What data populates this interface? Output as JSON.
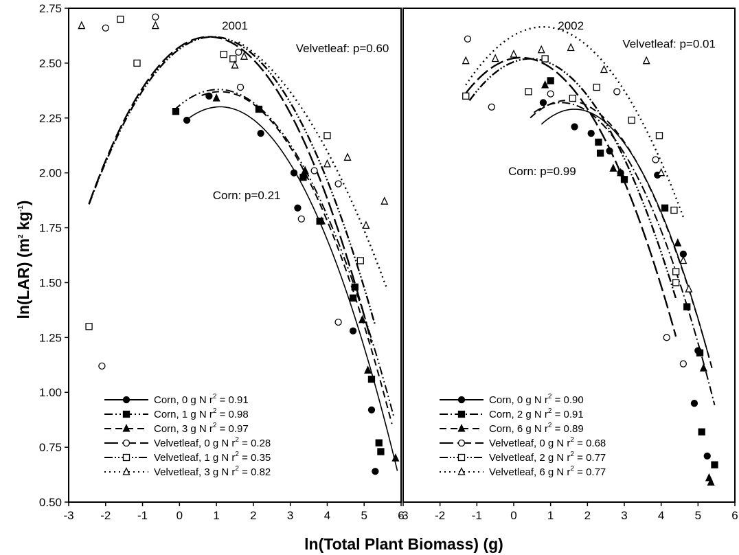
{
  "y_axis": {
    "label_main": "ln(LAR) (m",
    "label_sup1": "2",
    "label_mid": " kg",
    "label_sup2": "-1",
    "label_end": ")"
  },
  "x_axis": {
    "label": "ln(Total Plant Biomass) (g)"
  },
  "chart_data": [
    {
      "type": "scatter",
      "title": "2001",
      "xlim": [
        -3,
        6
      ],
      "ylim": [
        0.5,
        2.75
      ],
      "x_ticks": [
        "-3",
        "-2",
        "-1",
        "0",
        "1",
        "2",
        "3",
        "4",
        "5",
        "6"
      ],
      "y_ticks": [
        "0.50",
        "0.75",
        "1.00",
        "1.25",
        "1.50",
        "1.75",
        "2.00",
        "2.25",
        "2.50",
        "2.75"
      ],
      "annotations": [
        {
          "text": "Velvetleaf: p=0.60",
          "x": 3.15,
          "y": 2.55
        },
        {
          "text": "Corn: p=0.21",
          "x": 0.9,
          "y": 1.88
        }
      ],
      "series": [
        {
          "name": "Corn, 0 g N",
          "r2_label": "r",
          "r2_sup": "2",
          "r2_value": " = 0.91",
          "marker": "circle-filled",
          "dash": "none",
          "points": [
            [
              0.2,
              2.24
            ],
            [
              0.8,
              2.35
            ],
            [
              2.2,
              2.18
            ],
            [
              3.2,
              1.84
            ],
            [
              3.1,
              2.0
            ],
            [
              4.7,
              1.28
            ],
            [
              5.2,
              0.92
            ],
            [
              5.3,
              0.64
            ]
          ],
          "fit": [
            [
              1.1,
              0.1,
              -0.1
            ]
          ]
        },
        {
          "name": "Corn, 1 g N",
          "r2_label": "r",
          "r2_sup": "2",
          "r2_value": " = 0.98",
          "marker": "square-filled",
          "dash": "12 4 2 4 2 4",
          "points": [
            [
              -0.1,
              2.28
            ],
            [
              2.15,
              2.29
            ],
            [
              3.35,
              1.98
            ],
            [
              3.8,
              1.78
            ],
            [
              4.75,
              1.48
            ],
            [
              4.7,
              1.43
            ],
            [
              5.2,
              1.06
            ],
            [
              5.4,
              0.77
            ],
            [
              5.45,
              0.73
            ]
          ],
          "fit": []
        },
        {
          "name": "Corn, 3 g N",
          "r2_label": "r",
          "r2_sup": "2",
          "r2_value": " = 0.97",
          "marker": "triangle-filled",
          "dash": "10 6",
          "points": [
            [
              1.0,
              2.34
            ],
            [
              3.4,
              2.01
            ],
            [
              3.85,
              1.78
            ],
            [
              4.95,
              1.33
            ],
            [
              5.1,
              1.1
            ],
            [
              5.85,
              0.7
            ]
          ],
          "fit": []
        },
        {
          "name": "Velvetleaf, 0 g N",
          "r2_label": "r",
          "r2_sup": "2",
          "r2_value": " = 0.28",
          "marker": "circle-open",
          "dash": "20 6",
          "points": [
            [
              -2.1,
              1.12
            ],
            [
              -2.0,
              2.66
            ],
            [
              -0.65,
              2.71
            ],
            [
              1.65,
              2.39
            ],
            [
              1.6,
              2.55
            ],
            [
              3.3,
              1.79
            ],
            [
              3.65,
              2.01
            ],
            [
              4.3,
              1.32
            ],
            [
              4.3,
              1.95
            ]
          ],
          "fit": []
        },
        {
          "name": "Velvetleaf, 1 g N",
          "r2_label": "r",
          "r2_sup": "2",
          "r2_value": " = 0.35",
          "marker": "square-open",
          "dash": "12 3 2 3 2 3",
          "points": [
            [
              -2.45,
              1.3
            ],
            [
              -1.6,
              2.7
            ],
            [
              -1.15,
              2.5
            ],
            [
              1.2,
              2.54
            ],
            [
              1.45,
              2.52
            ],
            [
              4.0,
              2.17
            ],
            [
              4.9,
              1.6
            ]
          ],
          "fit": []
        },
        {
          "name": "Velvetleaf, 3 g N",
          "r2_label": "r",
          "r2_sup": "2",
          "r2_value": " = 0.82",
          "marker": "triangle-open",
          "dash": "2 5",
          "points": [
            [
              -2.65,
              2.67
            ],
            [
              -0.65,
              2.67
            ],
            [
              1.5,
              2.49
            ],
            [
              1.75,
              2.53
            ],
            [
              4.0,
              2.04
            ],
            [
              4.55,
              2.07
            ],
            [
              5.05,
              1.76
            ],
            [
              5.55,
              1.87
            ]
          ],
          "fit": []
        }
      ]
    },
    {
      "type": "scatter",
      "title": "2002",
      "xlim": [
        -3,
        6
      ],
      "ylim": [
        0.5,
        2.75
      ],
      "x_ticks": [
        "-3",
        "-2",
        "-1",
        "0",
        "1",
        "2",
        "3",
        "4",
        "5",
        "6"
      ],
      "annotations": [
        {
          "text": "Velvetleaf: p=0.01",
          "x": 2.95,
          "y": 2.57
        },
        {
          "text": "Corn: p=0.99",
          "x": -0.15,
          "y": 1.99
        }
      ],
      "series": [
        {
          "name": "Corn, 0 g N",
          "r2_label": "r",
          "r2_sup": "2",
          "r2_value": " = 0.90",
          "marker": "circle-filled",
          "dash": "none",
          "points": [
            [
              0.8,
              2.32
            ],
            [
              1.65,
              2.21
            ],
            [
              2.1,
              2.18
            ],
            [
              2.6,
              2.1
            ],
            [
              2.9,
              2.0
            ],
            [
              3.9,
              1.99
            ],
            [
              4.6,
              1.63
            ],
            [
              4.9,
              0.95
            ],
            [
              5.0,
              1.19
            ],
            [
              5.25,
              0.71
            ]
          ],
          "fit": []
        },
        {
          "name": "Corn, 2 g N",
          "r2_label": "r",
          "r2_sup": "2",
          "r2_value": " = 0.91",
          "marker": "square-filled",
          "dash": "12 4 2 4",
          "points": [
            [
              1.0,
              2.42
            ],
            [
              2.3,
              2.14
            ],
            [
              2.35,
              2.09
            ],
            [
              3.0,
              1.97
            ],
            [
              4.1,
              1.84
            ],
            [
              4.7,
              1.39
            ],
            [
              5.05,
              1.18
            ],
            [
              5.1,
              0.82
            ],
            [
              5.45,
              0.67
            ]
          ],
          "fit": []
        },
        {
          "name": "Corn, 6 g N",
          "r2_label": "r",
          "r2_sup": "2",
          "r2_value": " = 0.89",
          "marker": "triangle-filled",
          "dash": "10 6",
          "points": [
            [
              0.85,
              2.4
            ],
            [
              2.7,
              2.02
            ],
            [
              2.9,
              2.0
            ],
            [
              4.45,
              1.68
            ],
            [
              5.15,
              1.11
            ],
            [
              5.3,
              0.61
            ],
            [
              5.35,
              0.59
            ]
          ],
          "fit": []
        },
        {
          "name": "Velvetleaf, 0 g N",
          "r2_label": "r",
          "r2_sup": "2",
          "r2_value": " = 0.68",
          "marker": "circle-open",
          "dash": "20 6",
          "points": [
            [
              -1.25,
              2.61
            ],
            [
              -0.6,
              2.3
            ],
            [
              1.0,
              2.36
            ],
            [
              2.8,
              2.37
            ],
            [
              3.85,
              2.06
            ],
            [
              4.15,
              1.25
            ],
            [
              4.6,
              1.13
            ]
          ],
          "fit": []
        },
        {
          "name": "Velvetleaf, 2 g N",
          "r2_label": "r",
          "r2_sup": "2",
          "r2_value": " = 0.77",
          "marker": "square-open",
          "dash": "12 3 2 3 2 3",
          "points": [
            [
              -1.3,
              2.35
            ],
            [
              0.4,
              2.37
            ],
            [
              0.85,
              2.52
            ],
            [
              1.6,
              2.34
            ],
            [
              2.25,
              2.39
            ],
            [
              3.2,
              2.24
            ],
            [
              3.95,
              2.17
            ],
            [
              4.35,
              1.83
            ],
            [
              4.4,
              1.55
            ],
            [
              4.4,
              1.5
            ]
          ],
          "fit": []
        },
        {
          "name": "Velvetleaf, 6 g N",
          "r2_label": "r",
          "r2_sup": "2",
          "r2_value": " = 0.77",
          "marker": "triangle-open",
          "dash": "2 5",
          "points": [
            [
              -1.3,
              2.51
            ],
            [
              -0.5,
              2.52
            ],
            [
              0.0,
              2.54
            ],
            [
              0.75,
              2.56
            ],
            [
              1.55,
              2.57
            ],
            [
              2.45,
              2.47
            ],
            [
              3.6,
              2.51
            ],
            [
              4.0,
              2.0
            ],
            [
              4.6,
              1.6
            ],
            [
              4.75,
              1.47
            ]
          ],
          "fit": []
        }
      ]
    }
  ]
}
